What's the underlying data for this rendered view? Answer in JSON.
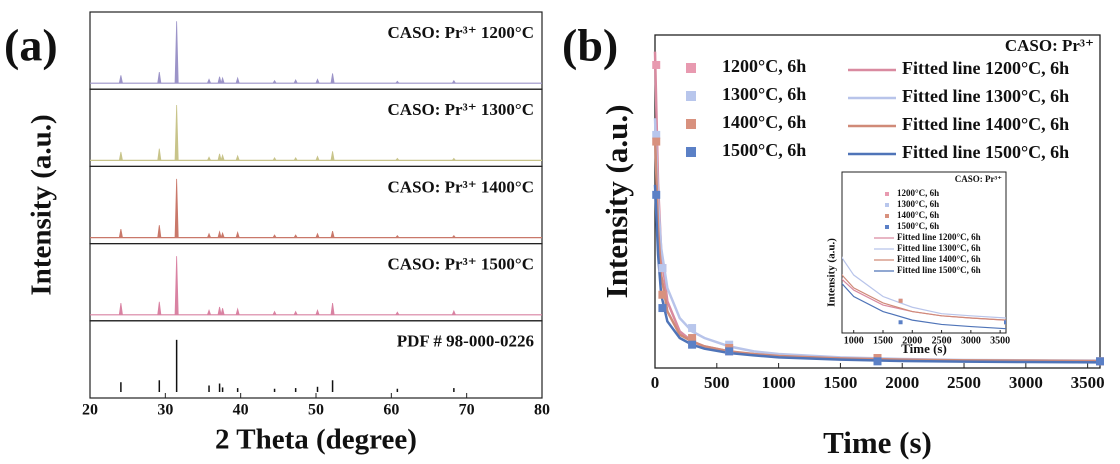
{
  "chart_data": [
    {
      "type": "xrd",
      "panel_label": "(a)",
      "xlabel": "2 Theta (degree)",
      "ylabel": "Intensity (a.u.)",
      "xlim": [
        20,
        80
      ],
      "xticks": [
        20,
        30,
        40,
        50,
        60,
        70,
        80
      ],
      "ylim": [
        0,
        100
      ],
      "series": [
        {
          "name": "CASO: Pr³⁺ 1200°C",
          "color": "#9c94c8",
          "style": "peak",
          "x": [
            24.1,
            29.2,
            31.5,
            35.8,
            37.2,
            37.6,
            39.6,
            44.5,
            47.3,
            50.2,
            52.2,
            60.8,
            68.3
          ],
          "values": [
            12,
            17,
            95,
            6,
            10,
            8,
            8,
            4,
            5,
            6,
            15,
            3,
            4
          ]
        },
        {
          "name": "CASO: Pr³⁺ 1300°C",
          "color": "#c8c48a",
          "style": "peak",
          "x": [
            24.1,
            29.2,
            31.5,
            35.8,
            37.2,
            37.6,
            39.6,
            44.5,
            47.3,
            50.2,
            52.2,
            60.8,
            68.3
          ],
          "values": [
            13,
            18,
            85,
            5,
            10,
            8,
            7,
            4,
            4,
            6,
            14,
            3,
            3
          ]
        },
        {
          "name": "CASO: Pr³⁺ 1400°C",
          "color": "#c9786a",
          "style": "peak",
          "x": [
            24.1,
            29.2,
            31.5,
            35.8,
            37.2,
            37.6,
            39.6,
            44.5,
            47.3,
            50.2,
            52.2,
            60.8,
            68.3
          ],
          "values": [
            13,
            19,
            90,
            6,
            9,
            7,
            8,
            4,
            4,
            6,
            10,
            3,
            3
          ]
        },
        {
          "name": "CASO: Pr³⁺ 1500°C",
          "color": "#d982a2",
          "style": "peak",
          "x": [
            24.1,
            29.2,
            31.5,
            35.8,
            37.2,
            37.6,
            39.6,
            44.5,
            47.3,
            50.2,
            52.2,
            60.8,
            68.3
          ],
          "values": [
            18,
            20,
            90,
            7,
            12,
            10,
            9,
            5,
            5,
            7,
            18,
            4,
            6
          ]
        },
        {
          "name": "PDF # 98-000-0226",
          "color": "#111111",
          "style": "stick",
          "x": [
            24.1,
            29.2,
            31.5,
            35.8,
            37.2,
            37.6,
            39.6,
            44.5,
            47.3,
            50.2,
            52.2,
            60.8,
            68.3
          ],
          "values": [
            15,
            18,
            80,
            10,
            13,
            7,
            6,
            5,
            6,
            8,
            18,
            5,
            6
          ]
        }
      ]
    },
    {
      "type": "decay",
      "panel_label": "(b)",
      "xlabel": "Time (s)",
      "ylabel": "Intensity (a.u.)",
      "annotation": "CASO: Pr³⁺",
      "xlim": [
        0,
        3600
      ],
      "xticks": [
        0,
        500,
        1000,
        1500,
        2000,
        2500,
        3000,
        3500
      ],
      "ylim": [
        0,
        100
      ],
      "series": [
        {
          "name": "1200°C, 6h",
          "color": "#e89ab0",
          "style": "points",
          "x": [
            10,
            60,
            300,
            600,
            1800,
            3600
          ],
          "values": [
            91,
            30,
            8,
            5,
            3,
            2
          ]
        },
        {
          "name": "1300°C, 6h",
          "color": "#b8c6ec",
          "style": "points",
          "x": [
            10,
            60,
            300,
            600,
            1800,
            3600
          ],
          "values": [
            70,
            30,
            12,
            7,
            3,
            2
          ]
        },
        {
          "name": "1400°C, 6h",
          "color": "#d8917e",
          "style": "points",
          "x": [
            10,
            60,
            300,
            600,
            1800,
            3600
          ],
          "values": [
            68,
            22,
            9,
            6,
            3,
            2
          ]
        },
        {
          "name": "1500°C, 6h",
          "color": "#5b80c6",
          "style": "points",
          "x": [
            10,
            60,
            300,
            600,
            1800,
            3600
          ],
          "values": [
            52,
            18,
            7,
            5,
            2,
            2
          ]
        },
        {
          "name": "Fitted line 1200°C, 6h",
          "color": "#d98aa0",
          "style": "line",
          "x": [
            0,
            25,
            50,
            100,
            200,
            300,
            400,
            600,
            800,
            1000,
            1500,
            2000,
            2500,
            3000,
            3600
          ],
          "values": [
            95,
            55,
            35,
            20,
            11,
            8,
            6.5,
            5,
            4,
            3.5,
            2.8,
            2.5,
            2.3,
            2.2,
            2.1
          ]
        },
        {
          "name": "Fitted line 1300°C, 6h",
          "color": "#b8c4ea",
          "style": "line",
          "x": [
            0,
            25,
            50,
            100,
            200,
            300,
            400,
            600,
            800,
            1000,
            1500,
            2000,
            2500,
            3000,
            3600
          ],
          "values": [
            75,
            50,
            36,
            24,
            15,
            11,
            9,
            6.5,
            5,
            4.2,
            3.2,
            2.7,
            2.4,
            2.3,
            2.2
          ]
        },
        {
          "name": "Fitted line 1400°C, 6h",
          "color": "#d08a78",
          "style": "line",
          "x": [
            0,
            25,
            50,
            100,
            200,
            300,
            400,
            600,
            800,
            1000,
            1500,
            2000,
            2500,
            3000,
            3600
          ],
          "values": [
            70,
            42,
            28,
            17,
            10,
            8,
            6.5,
            5,
            4.2,
            3.6,
            2.9,
            2.5,
            2.3,
            2.2,
            2.1
          ]
        },
        {
          "name": "Fitted line 1500°C, 6h",
          "color": "#4f74b8",
          "style": "line",
          "x": [
            0,
            25,
            50,
            100,
            200,
            300,
            400,
            600,
            800,
            1000,
            1500,
            2000,
            2500,
            3000,
            3600
          ],
          "values": [
            55,
            34,
            22,
            14,
            9,
            7,
            5.8,
            4.5,
            3.8,
            3.2,
            2.5,
            2.1,
            1.9,
            1.8,
            1.7
          ]
        }
      ],
      "inset": {
        "title": "CASO: Pr³⁺",
        "xlabel": "Time (s)",
        "ylabel": "Intensity (a.u.)",
        "xlim": [
          800,
          3600
        ],
        "xticks": [
          1000,
          1500,
          2000,
          2500,
          3000,
          3500
        ],
        "ylim": [
          1.5,
          9
        ]
      }
    }
  ]
}
